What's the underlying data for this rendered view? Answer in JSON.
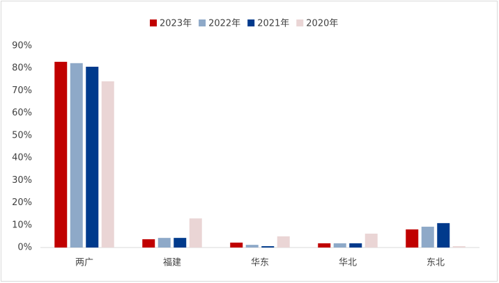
{
  "chart_data": {
    "type": "bar",
    "categories": [
      "两广",
      "福建",
      "华东",
      "华北",
      "东北"
    ],
    "series": [
      {
        "name": "2023年",
        "color": "#c00000",
        "values": [
          82.9,
          3.7,
          2.2,
          1.9,
          8.1
        ]
      },
      {
        "name": "2022年",
        "color": "#8ea9c8",
        "values": [
          82.3,
          4.3,
          1.2,
          1.9,
          9.3
        ]
      },
      {
        "name": "2021年",
        "color": "#003a8c",
        "values": [
          80.7,
          4.3,
          0.6,
          1.9,
          10.9
        ]
      },
      {
        "name": "2020年",
        "color": "#ead5d5",
        "values": [
          74.2,
          13.0,
          5.0,
          6.2,
          0.6
        ]
      }
    ],
    "ylim": [
      0,
      90
    ],
    "yticks": [
      {
        "value": 0,
        "label": "0%"
      },
      {
        "value": 10,
        "label": "10%"
      },
      {
        "value": 20,
        "label": "20%"
      },
      {
        "value": 30,
        "label": "30%"
      },
      {
        "value": 40,
        "label": "40%"
      },
      {
        "value": 50,
        "label": "50%"
      },
      {
        "value": 60,
        "label": "60%"
      },
      {
        "value": 70,
        "label": "70%"
      },
      {
        "value": 80,
        "label": "80%"
      },
      {
        "value": 90,
        "label": "90%"
      }
    ],
    "grid": false,
    "legend": "top"
  }
}
